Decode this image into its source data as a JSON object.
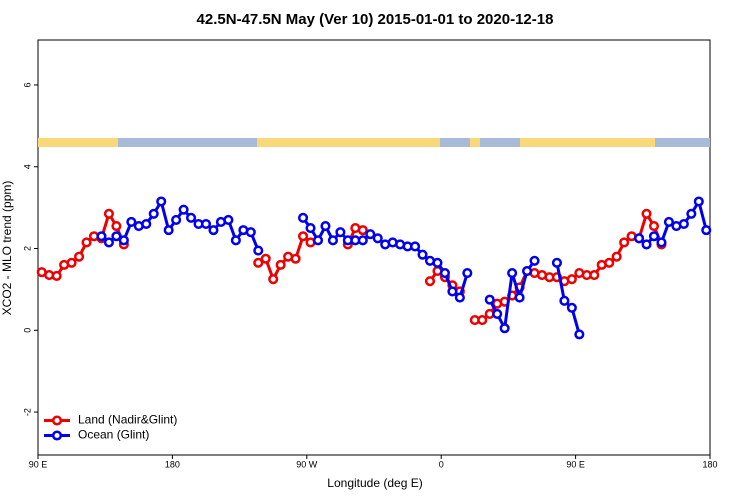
{
  "chart_data": {
    "type": "line",
    "title": "42.5N-47.5N May (Ver 10)   2015-01-01 to 2020-12-18",
    "x_label": "Longitude (deg E)",
    "y_label": "XCO2 - MLO trend (ppm)",
    "xlim": [
      90,
      540
    ],
    "xticks": [
      {
        "value": 90,
        "label": "90 E"
      },
      180,
      {
        "value": 270,
        "label": "90 W"
      },
      {
        "value": 360,
        "label": "0"
      },
      {
        "value": 450,
        "label": "90 E"
      },
      {
        "value": 540,
        "label": "180"
      }
    ],
    "ylim": [
      -3.05,
      7.1
    ],
    "yticks": [
      -2,
      0,
      2,
      4,
      6
    ],
    "legend": "bottom-left",
    "series": [
      {
        "name": "Land (Nadir&Glint)",
        "color": "#ee0000",
        "x": [
          92.5,
          97.5,
          102.5,
          107.5,
          112.5,
          117.5,
          122.5,
          127.5,
          132.5,
          137.5,
          142.5,
          147.5,
          152.5,
          237.5,
          242.5,
          247.5,
          252.5,
          257.5,
          262.5,
          267.5,
          272.5,
          277.5,
          297.5,
          302.5,
          307.5,
          312.5,
          352.5,
          357.5,
          362.5,
          367.5,
          372.5,
          377.5,
          382.5,
          387.5,
          392.5,
          397.5,
          402.5,
          407.5,
          412.5,
          417.5,
          422.5,
          427.5,
          432.5,
          437.5,
          442.5,
          447.5,
          452.5,
          457.5,
          462.5,
          467.5,
          472.5,
          477.5,
          482.5,
          487.5,
          492.5,
          497.5,
          502.5,
          507.5
        ],
        "values": [
          1.42,
          1.35,
          1.33,
          1.6,
          1.65,
          1.8,
          2.15,
          2.3,
          2.25,
          2.85,
          2.55,
          2.1,
          null,
          1.65,
          1.75,
          1.25,
          1.6,
          1.8,
          1.75,
          2.3,
          2.15,
          null,
          2.1,
          2.5,
          2.45,
          null,
          1.2,
          1.45,
          1.3,
          1.1,
          0.95,
          null,
          0.25,
          0.25,
          0.4,
          0.65,
          0.7,
          0.85,
          1.05,
          1.45,
          1.4,
          1.35,
          1.3,
          1.3,
          1.2,
          1.25,
          1.4,
          1.35,
          1.35,
          1.6,
          1.65,
          1.8,
          2.15,
          2.3,
          2.25,
          2.85,
          2.55,
          2.1
        ]
      },
      {
        "name": "Ocean (Glint)",
        "color": "#0000ee",
        "x": [
          132.5,
          137.5,
          142.5,
          147.5,
          152.5,
          157.5,
          162.5,
          167.5,
          172.5,
          177.5,
          182.5,
          187.5,
          192.5,
          197.5,
          202.5,
          207.5,
          212.5,
          217.5,
          222.5,
          227.5,
          232.5,
          237.5,
          242.5,
          267.5,
          272.5,
          277.5,
          282.5,
          287.5,
          292.5,
          297.5,
          302.5,
          307.5,
          312.5,
          317.5,
          322.5,
          327.5,
          332.5,
          337.5,
          342.5,
          347.5,
          352.5,
          357.5,
          362.5,
          367.5,
          372.5,
          377.5,
          382.5,
          392.5,
          397.5,
          402.5,
          407.5,
          412.5,
          417.5,
          422.5,
          427.5,
          437.5,
          442.5,
          447.5,
          452.5,
          457.5,
          492.5,
          497.5,
          502.5,
          507.5,
          512.5,
          517.5,
          522.5,
          527.5,
          532.5,
          537.5
        ],
        "values": [
          2.3,
          2.15,
          2.3,
          2.2,
          2.65,
          2.55,
          2.6,
          2.85,
          3.15,
          2.45,
          2.7,
          2.95,
          2.75,
          2.6,
          2.6,
          2.45,
          2.65,
          2.7,
          2.2,
          2.45,
          2.4,
          1.95,
          null,
          2.75,
          2.5,
          2.2,
          2.55,
          2.2,
          2.4,
          2.2,
          2.2,
          2.2,
          2.35,
          2.25,
          2.1,
          2.15,
          2.1,
          2.05,
          2.05,
          1.85,
          1.7,
          1.65,
          1.4,
          0.95,
          0.8,
          1.4,
          null,
          0.75,
          0.4,
          0.05,
          1.4,
          0.8,
          1.45,
          1.7,
          null,
          1.65,
          0.72,
          0.55,
          -0.1,
          null,
          2.25,
          2.1,
          2.3,
          2.15,
          2.65,
          2.55,
          2.6,
          2.85,
          3.15,
          2.45
        ]
      }
    ]
  }
}
